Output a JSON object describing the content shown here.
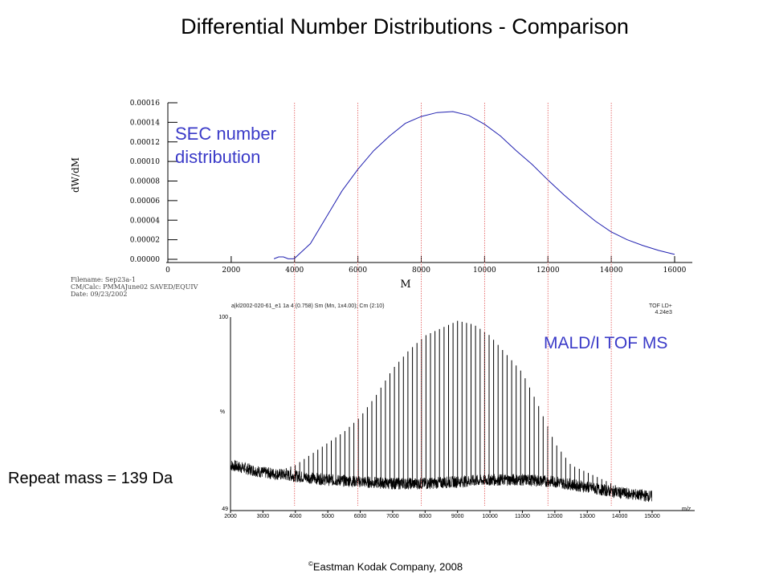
{
  "slide": {
    "title": "Differential Number Distributions - Comparison",
    "copyright_symbol": "©",
    "copyright": "Eastman Kodak Company, 2008",
    "repeat_mass": "Repeat mass = 139 Da"
  },
  "colors": {
    "annotation_blue": "#3a3ac8",
    "sec_curve": "#2020b0",
    "reference_lines": "#e05050"
  },
  "chart_data": [
    {
      "type": "line",
      "title": "",
      "series_label": "SEC number distribution",
      "series_label_lines": [
        "SEC number",
        "distribution"
      ],
      "xlabel": "M",
      "ylabel": "dW/dM",
      "xlim": [
        0,
        16000
      ],
      "ylim": [
        0,
        0.00016
      ],
      "x_ticks": [
        "0",
        "2000",
        "4000",
        "6000",
        "8000",
        "10000",
        "12000",
        "14000",
        "16000"
      ],
      "y_ticks": [
        "0.00000",
        "0.00002",
        "0.00004",
        "0.00006",
        "0.00008",
        "0.00010",
        "0.00012",
        "0.00014",
        "0.00016"
      ],
      "grid": false,
      "file_info": [
        "Filename: Sep23a-1",
        "CM/Calc: PMMAJune02 SAVED/EQUIV",
        "Date: 09/23/2002"
      ],
      "series": [
        {
          "name": "SEC number distribution",
          "x": [
            3350,
            3500,
            3650,
            3800,
            3950,
            4000,
            4500,
            5000,
            5500,
            6000,
            6500,
            7000,
            7500,
            8000,
            8500,
            9000,
            9500,
            10000,
            10500,
            11000,
            11500,
            12000,
            12500,
            13000,
            13500,
            14000,
            14500,
            15000,
            15500,
            16000
          ],
          "y": [
            5e-07,
            2.5e-06,
            2.5e-06,
            5e-07,
            5e-07,
            1e-06,
            1.6e-05,
            4.3e-05,
            7e-05,
            9.2e-05,
            0.000111,
            0.000126,
            0.000139,
            0.000146,
            0.00015,
            0.000151,
            0.000147,
            0.000138,
            0.000126,
            0.000111,
            9.7e-05,
            8.1e-05,
            6.6e-05,
            5.2e-05,
            3.9e-05,
            2.8e-05,
            2e-05,
            1.4e-05,
            9e-06,
            5e-06
          ]
        }
      ]
    },
    {
      "type": "line",
      "title": "",
      "series_label": "MALD/I TOF MS",
      "header_left": "a|kl2002-020-61_e1 1a 4 (0.758) Sm (Mn, 1x4.00); Cm (2:10)",
      "header_right": [
        "TOF LD+",
        "4.24e3"
      ],
      "xlabel": "m/z",
      "ylabel": "%",
      "xlim": [
        2000,
        15000
      ],
      "ylim": [
        49,
        100
      ],
      "y_ticks": [
        "100",
        "49"
      ],
      "x_ticks": [
        "2000",
        "3000",
        "4000",
        "5000",
        "6000",
        "7000",
        "8000",
        "9000",
        "10000",
        "11000",
        "12000",
        "13000",
        "14000",
        "15000"
      ],
      "repeat_mass_da": 139,
      "envelope": {
        "name": "peak envelope",
        "x": [
          2000,
          3000,
          3500,
          4000,
          4500,
          5000,
          5500,
          6000,
          6500,
          7000,
          7500,
          8000,
          8500,
          9000,
          9500,
          10000,
          10500,
          11000,
          11500,
          12000,
          12500,
          13000,
          13500,
          14000,
          15000
        ],
        "y": [
          59,
          58,
          58.5,
          60,
          63,
          66,
          69,
          73,
          79,
          86,
          91,
          95,
          97,
          99,
          98,
          95,
          90,
          85,
          76,
          66,
          60,
          58,
          56,
          54,
          52
        ]
      },
      "baseline": {
        "name": "baseline",
        "x": [
          2000,
          3000,
          4000,
          5000,
          6000,
          7000,
          8000,
          9000,
          10000,
          11000,
          12000,
          13000,
          14000,
          15000
        ],
        "y": [
          60,
          58,
          57,
          56,
          55.5,
          55,
          55,
          55.5,
          56,
          56,
          55.5,
          54,
          52.5,
          51.5
        ]
      }
    }
  ],
  "reference_lines_x": [
    4000,
    6000,
    8000,
    10000,
    12000,
    14000
  ]
}
